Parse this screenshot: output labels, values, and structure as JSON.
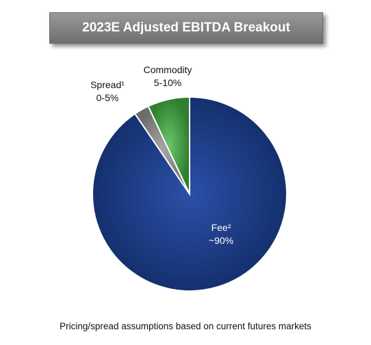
{
  "title": "2023E Adjusted EBITDA Breakout",
  "footnote": "Pricing/spread assumptions based on current futures markets",
  "chart_data": {
    "type": "pie",
    "title": "2023E Adjusted EBITDA Breakout",
    "slices": [
      {
        "name": "Fee²",
        "label": "~90%",
        "value": 90.5,
        "color": "#1f3f8f"
      },
      {
        "name": "Spread¹",
        "label": "0-5%",
        "value": 2.5,
        "color": "#8a8a8a"
      },
      {
        "name": "Commodity",
        "label": "5-10%",
        "value": 7.0,
        "color": "#4ea64e"
      }
    ]
  }
}
